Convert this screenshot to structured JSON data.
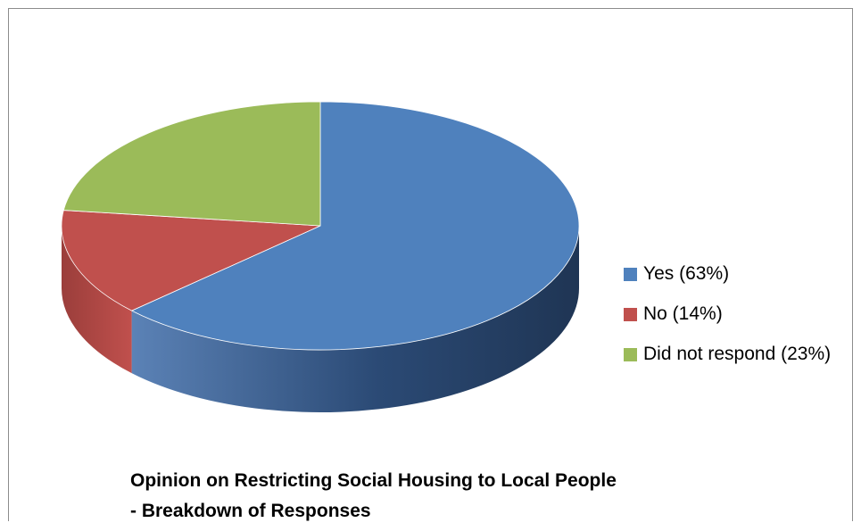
{
  "chart_data": {
    "type": "pie",
    "title": "Opinion on Restricting Social Housing to Local People",
    "subtitle": "- Breakdown of Responses",
    "categories": [
      "Yes (63%)",
      "No (14%)",
      "Did not respond (23%)"
    ],
    "values": [
      63,
      14,
      23
    ],
    "colors": [
      "#4f81bd",
      "#c0504d",
      "#9bbb59"
    ],
    "legend_position": "right",
    "three_d": true
  }
}
